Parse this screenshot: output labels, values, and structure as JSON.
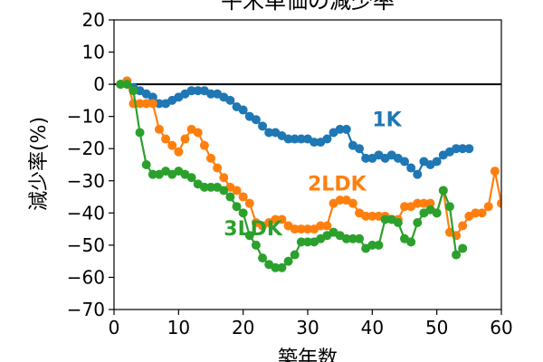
{
  "chart_data": {
    "type": "line",
    "title": "平米単価の減少率",
    "xlabel": "築年数",
    "ylabel": "減少率(%)",
    "xlim": [
      0,
      60
    ],
    "ylim": [
      -70,
      20
    ],
    "xticks": [
      0,
      10,
      20,
      30,
      40,
      50,
      60
    ],
    "yticks": [
      20,
      10,
      0,
      -10,
      -20,
      -30,
      -40,
      -50,
      -60,
      -70
    ],
    "reference_line_y": 0,
    "grid": false,
    "legend": "none",
    "series": [
      {
        "name": "1K",
        "color": "#1f77b4",
        "points": [
          [
            1,
            0
          ],
          [
            2,
            1
          ],
          [
            3,
            -1
          ],
          [
            4,
            -2
          ],
          [
            5,
            -3
          ],
          [
            6,
            -4
          ],
          [
            7,
            -6
          ],
          [
            8,
            -6
          ],
          [
            9,
            -5
          ],
          [
            10,
            -4
          ],
          [
            11,
            -3
          ],
          [
            12,
            -2
          ],
          [
            13,
            -2
          ],
          [
            14,
            -2
          ],
          [
            15,
            -3
          ],
          [
            16,
            -3
          ],
          [
            17,
            -4
          ],
          [
            18,
            -5
          ],
          [
            19,
            -7
          ],
          [
            20,
            -8
          ],
          [
            21,
            -10
          ],
          [
            22,
            -11
          ],
          [
            23,
            -13
          ],
          [
            24,
            -15
          ],
          [
            25,
            -15
          ],
          [
            26,
            -16
          ],
          [
            27,
            -17
          ],
          [
            28,
            -17
          ],
          [
            29,
            -17
          ],
          [
            30,
            -17
          ],
          [
            31,
            -18
          ],
          [
            32,
            -18
          ],
          [
            33,
            -17
          ],
          [
            34,
            -15
          ],
          [
            35,
            -14
          ],
          [
            36,
            -14
          ],
          [
            37,
            -19
          ],
          [
            38,
            -20
          ],
          [
            39,
            -23
          ],
          [
            40,
            -23
          ],
          [
            41,
            -22
          ],
          [
            42,
            -23
          ],
          [
            43,
            -22
          ],
          [
            44,
            -23
          ],
          [
            45,
            -24
          ],
          [
            46,
            -26
          ],
          [
            47,
            -28
          ],
          [
            48,
            -24
          ],
          [
            49,
            -25
          ],
          [
            50,
            -24
          ],
          [
            51,
            -22
          ],
          [
            52,
            -21
          ],
          [
            53,
            -20
          ],
          [
            54,
            -20
          ],
          [
            55,
            -20
          ]
        ]
      },
      {
        "name": "2LDK",
        "color": "#ff7f0e",
        "points": [
          [
            1,
            0
          ],
          [
            2,
            1
          ],
          [
            3,
            -6
          ],
          [
            4,
            -6
          ],
          [
            5,
            -6
          ],
          [
            6,
            -6
          ],
          [
            7,
            -14
          ],
          [
            8,
            -17
          ],
          [
            9,
            -19
          ],
          [
            10,
            -21
          ],
          [
            11,
            -17
          ],
          [
            12,
            -14
          ],
          [
            13,
            -15
          ],
          [
            14,
            -19
          ],
          [
            15,
            -23
          ],
          [
            16,
            -26
          ],
          [
            17,
            -29
          ],
          [
            18,
            -32
          ],
          [
            19,
            -33
          ],
          [
            20,
            -35
          ],
          [
            21,
            -37
          ],
          [
            22,
            -43
          ],
          [
            23,
            -44
          ],
          [
            24,
            -43
          ],
          [
            25,
            -42
          ],
          [
            26,
            -42
          ],
          [
            27,
            -44
          ],
          [
            28,
            -45
          ],
          [
            29,
            -45
          ],
          [
            30,
            -45
          ],
          [
            31,
            -45
          ],
          [
            32,
            -44
          ],
          [
            33,
            -44
          ],
          [
            34,
            -37
          ],
          [
            35,
            -36
          ],
          [
            36,
            -36
          ],
          [
            37,
            -37
          ],
          [
            38,
            -40
          ],
          [
            39,
            -41
          ],
          [
            40,
            -41
          ],
          [
            41,
            -41
          ],
          [
            42,
            -41
          ],
          [
            43,
            -42
          ],
          [
            44,
            -42
          ],
          [
            45,
            -38
          ],
          [
            46,
            -38
          ],
          [
            47,
            -37
          ],
          [
            48,
            -37
          ],
          [
            49,
            -37
          ],
          [
            50,
            -40
          ],
          [
            51,
            -33
          ],
          [
            52,
            -46
          ],
          [
            53,
            -47
          ],
          [
            54,
            -44
          ],
          [
            55,
            -41
          ],
          [
            56,
            -40
          ],
          [
            57,
            -40
          ],
          [
            58,
            -38
          ],
          [
            59,
            -27
          ],
          [
            60,
            -37
          ]
        ]
      },
      {
        "name": "3LDK",
        "color": "#2ca02c",
        "points": [
          [
            1,
            0
          ],
          [
            2,
            0
          ],
          [
            3,
            -2
          ],
          [
            4,
            -15
          ],
          [
            5,
            -25
          ],
          [
            6,
            -28
          ],
          [
            7,
            -28
          ],
          [
            8,
            -27
          ],
          [
            9,
            -28
          ],
          [
            10,
            -27
          ],
          [
            11,
            -28
          ],
          [
            12,
            -29
          ],
          [
            13,
            -31
          ],
          [
            14,
            -32
          ],
          [
            15,
            -32
          ],
          [
            16,
            -32
          ],
          [
            17,
            -33
          ],
          [
            18,
            -35
          ],
          [
            19,
            -38
          ],
          [
            20,
            -40
          ],
          [
            21,
            -47
          ],
          [
            22,
            -50
          ],
          [
            23,
            -54
          ],
          [
            24,
            -56
          ],
          [
            25,
            -57
          ],
          [
            26,
            -57
          ],
          [
            27,
            -55
          ],
          [
            28,
            -53
          ],
          [
            29,
            -49
          ],
          [
            30,
            -49
          ],
          [
            31,
            -49
          ],
          [
            32,
            -48
          ],
          [
            33,
            -47
          ],
          [
            34,
            -46
          ],
          [
            35,
            -47
          ],
          [
            36,
            -48
          ],
          [
            37,
            -48
          ],
          [
            38,
            -48
          ],
          [
            39,
            -51
          ],
          [
            40,
            -50
          ],
          [
            41,
            -50
          ],
          [
            42,
            -42
          ],
          [
            43,
            -42
          ],
          [
            44,
            -43
          ],
          [
            45,
            -48
          ],
          [
            46,
            -49
          ],
          [
            47,
            -43
          ],
          [
            48,
            -40
          ],
          [
            49,
            -39
          ],
          [
            50,
            -40
          ],
          [
            51,
            -33
          ],
          [
            52,
            -38
          ],
          [
            53,
            -53
          ],
          [
            54,
            -51
          ]
        ]
      }
    ],
    "annotations": [
      {
        "text": "1K",
        "series": 0,
        "x": 40,
        "y": -13
      },
      {
        "text": "2LDK",
        "series": 1,
        "x": 30,
        "y": -33
      },
      {
        "text": "3LDK",
        "series": 2,
        "x": 17,
        "y": -47
      }
    ]
  }
}
